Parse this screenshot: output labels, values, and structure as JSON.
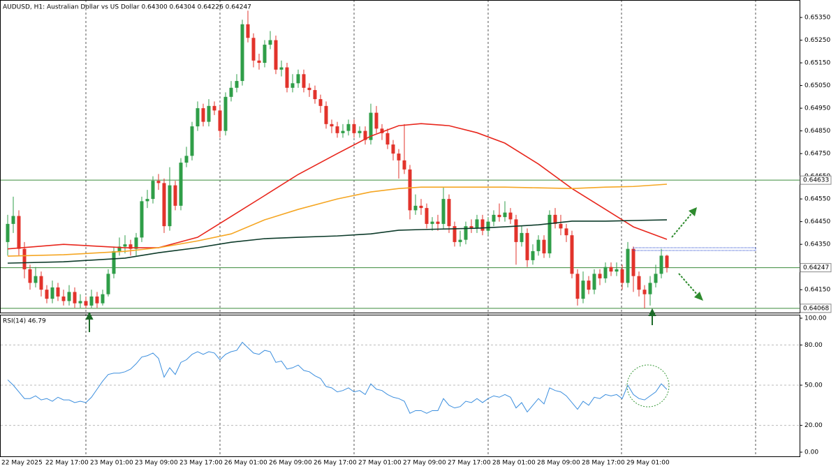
{
  "chart_data": {
    "type": "candlestick",
    "title": "AUDUSD, H1:  Australian Dollar vs US Dollar  0.64300 0.64304 0.64226 0.64247",
    "x_labels": [
      "22 May 2025",
      "22 May 17:00",
      "23 May 01:00",
      "23 May 09:00",
      "23 May 17:00",
      "26 May 01:00",
      "26 May 09:00",
      "26 May 17:00",
      "27 May 01:00",
      "27 May 09:00",
      "27 May 17:00",
      "28 May 01:00",
      "28 May 09:00",
      "28 May 17:00",
      "29 May 01:00"
    ],
    "up_color": "#2f9e48",
    "down_color": "#e2332b",
    "open": [
      0.6436,
      0.6444,
      0.64475,
      0.6433,
      0.6424,
      0.6418,
      0.6421,
      0.6415,
      0.6411,
      0.6416,
      0.6412,
      0.641,
      0.6414,
      0.6409,
      0.641,
      0.6408,
      0.6412,
      0.6409,
      0.6413,
      0.6422,
      0.6432,
      0.6434,
      0.6435,
      0.6433,
      0.6438,
      0.6454,
      0.6455,
      0.6463,
      0.6462,
      0.6443,
      0.6461,
      0.6452,
      0.6471,
      0.6474,
      0.6487,
      0.6495,
      0.6489,
      0.6496,
      0.6494,
      0.6485,
      0.65,
      0.6504,
      0.6507,
      0.6532,
      0.6526,
      0.6516,
      0.6515,
      0.6523,
      0.6525,
      0.6512,
      0.6513,
      0.6504,
      0.6506,
      0.651,
      0.6504,
      0.6503,
      0.6499,
      0.6496,
      0.6488,
      0.6487,
      0.6484,
      0.6485,
      0.6488,
      0.6484,
      0.6485,
      0.6481,
      0.6493,
      0.6486,
      0.6484,
      0.6479,
      0.6475,
      0.6472,
      0.6468,
      0.645,
      0.6452,
      0.6451,
      0.6444,
      0.6445,
      0.6444,
      0.6455,
      0.6443,
      0.6436,
      0.6437,
      0.6443,
      0.6442,
      0.6446,
      0.6441,
      0.6445,
      0.6448,
      0.6447,
      0.6449,
      0.6446,
      0.6436,
      0.644,
      0.6428,
      0.6432,
      0.6437,
      0.6431,
      0.6448,
      0.6444,
      0.6442,
      0.6439,
      0.6422,
      0.6411,
      0.6419,
      0.6415,
      0.6422,
      0.642,
      0.6425,
      0.6423,
      0.6424,
      0.6418,
      0.6433,
      0.6421,
      0.6415,
      0.6413,
      0.6418,
      0.6422,
      0.643
    ],
    "high": [
      0.6448,
      0.6456,
      0.645,
      0.6436,
      0.6426,
      0.6425,
      0.6423,
      0.6417,
      0.6419,
      0.6418,
      0.6415,
      0.6417,
      0.6416,
      0.6413,
      0.6412,
      0.6415,
      0.6414,
      0.6415,
      0.6424,
      0.6434,
      0.6438,
      0.6439,
      0.6437,
      0.644,
      0.6456,
      0.6459,
      0.6465,
      0.6466,
      0.6464,
      0.6469,
      0.6463,
      0.6473,
      0.6478,
      0.6489,
      0.6498,
      0.6497,
      0.6499,
      0.6498,
      0.6496,
      0.6502,
      0.6507,
      0.651,
      0.6534,
      0.6538,
      0.6528,
      0.6519,
      0.6525,
      0.6529,
      0.6527,
      0.6516,
      0.6515,
      0.651,
      0.6512,
      0.6512,
      0.6506,
      0.6505,
      0.6501,
      0.6498,
      0.649,
      0.6489,
      0.6488,
      0.649,
      0.649,
      0.6487,
      0.6487,
      0.6497,
      0.6496,
      0.6488,
      0.6486,
      0.6481,
      0.6477,
      0.6488,
      0.647,
      0.6457,
      0.6455,
      0.6453,
      0.6447,
      0.6448,
      0.646,
      0.6457,
      0.6445,
      0.6441,
      0.6445,
      0.6446,
      0.6448,
      0.6448,
      0.6447,
      0.645,
      0.6453,
      0.6454,
      0.6451,
      0.6448,
      0.6443,
      0.6442,
      0.6435,
      0.6439,
      0.6439,
      0.645,
      0.6451,
      0.6448,
      0.6444,
      0.6441,
      0.6424,
      0.6423,
      0.6421,
      0.6424,
      0.6424,
      0.6427,
      0.6427,
      0.6427,
      0.6426,
      0.6436,
      0.6434,
      0.6423,
      0.6417,
      0.6421,
      0.6426,
      0.6433,
      0.64304
    ],
    "low": [
      0.643,
      0.644,
      0.643,
      0.642,
      0.6415,
      0.6416,
      0.6412,
      0.6409,
      0.6409,
      0.641,
      0.6408,
      0.6408,
      0.6407,
      0.6407,
      0.64068,
      0.6407,
      0.6407,
      0.6408,
      0.6412,
      0.642,
      0.643,
      0.6431,
      0.643,
      0.643,
      0.6436,
      0.6451,
      0.6453,
      0.6459,
      0.644,
      0.6441,
      0.645,
      0.645,
      0.6469,
      0.6472,
      0.6485,
      0.6487,
      0.6487,
      0.6492,
      0.6482,
      0.6483,
      0.6498,
      0.6502,
      0.6505,
      0.6524,
      0.6513,
      0.6512,
      0.6513,
      0.6521,
      0.651,
      0.6509,
      0.6502,
      0.6502,
      0.6504,
      0.6502,
      0.65,
      0.6497,
      0.6493,
      0.6486,
      0.6484,
      0.6482,
      0.6482,
      0.6483,
      0.6482,
      0.6482,
      0.6479,
      0.6479,
      0.6484,
      0.6481,
      0.6477,
      0.6472,
      0.6464,
      0.6466,
      0.6446,
      0.6448,
      0.6448,
      0.6442,
      0.6441,
      0.6441,
      0.6442,
      0.644,
      0.6434,
      0.6434,
      0.6435,
      0.644,
      0.644,
      0.6439,
      0.6439,
      0.6443,
      0.6445,
      0.6445,
      0.6444,
      0.6426,
      0.6434,
      0.6425,
      0.6426,
      0.643,
      0.6429,
      0.6429,
      0.6442,
      0.6439,
      0.6436,
      0.642,
      0.6408,
      0.6409,
      0.6413,
      0.6413,
      0.6417,
      0.6418,
      0.6421,
      0.6421,
      0.6415,
      0.6416,
      0.6414,
      0.6412,
      0.64068,
      0.6408,
      0.6416,
      0.642,
      0.64226
    ],
    "close": [
      0.6444,
      0.64475,
      0.6433,
      0.6424,
      0.6418,
      0.6421,
      0.6415,
      0.6411,
      0.6416,
      0.6412,
      0.641,
      0.6414,
      0.6409,
      0.641,
      0.6408,
      0.6412,
      0.6409,
      0.6413,
      0.6422,
      0.6432,
      0.6434,
      0.6435,
      0.6433,
      0.6438,
      0.6454,
      0.6455,
      0.6463,
      0.6462,
      0.6443,
      0.6461,
      0.6452,
      0.6471,
      0.6474,
      0.6487,
      0.6495,
      0.6489,
      0.6496,
      0.6494,
      0.6485,
      0.65,
      0.6504,
      0.6507,
      0.6532,
      0.6526,
      0.6516,
      0.6515,
      0.6523,
      0.6525,
      0.6512,
      0.6513,
      0.6504,
      0.6506,
      0.651,
      0.6504,
      0.6503,
      0.6499,
      0.6496,
      0.6488,
      0.6487,
      0.6484,
      0.6485,
      0.6488,
      0.6484,
      0.6485,
      0.6481,
      0.6493,
      0.6486,
      0.6484,
      0.6479,
      0.6475,
      0.6472,
      0.6468,
      0.645,
      0.6452,
      0.6451,
      0.6444,
      0.6445,
      0.6444,
      0.6455,
      0.6443,
      0.6436,
      0.6437,
      0.6443,
      0.6442,
      0.6446,
      0.6441,
      0.6445,
      0.6448,
      0.6447,
      0.6449,
      0.6446,
      0.6436,
      0.644,
      0.6428,
      0.6432,
      0.6437,
      0.6431,
      0.6448,
      0.6444,
      0.6442,
      0.6439,
      0.6422,
      0.6411,
      0.6419,
      0.6415,
      0.6422,
      0.642,
      0.6425,
      0.6423,
      0.6424,
      0.6418,
      0.6433,
      0.6421,
      0.6415,
      0.6413,
      0.6418,
      0.6422,
      0.643,
      0.64247
    ],
    "ylim": [
      0.64049,
      0.65427
    ],
    "yticks": [
      {
        "value": 0.6415,
        "label": "0.64150"
      },
      {
        "value": 0.6425,
        "label": "0.64250"
      },
      {
        "value": 0.6435,
        "label": "0.64350"
      },
      {
        "value": 0.6445,
        "label": "0.64450"
      },
      {
        "value": 0.6455,
        "label": "0.64550"
      },
      {
        "value": 0.6465,
        "label": "0.64650"
      },
      {
        "value": 0.6475,
        "label": "0.64750"
      },
      {
        "value": 0.6485,
        "label": "0.64850"
      },
      {
        "value": 0.6495,
        "label": "0.64950"
      },
      {
        "value": 0.6505,
        "label": "0.65050"
      },
      {
        "value": 0.6515,
        "label": "0.65150"
      },
      {
        "value": 0.6525,
        "label": "0.65250"
      },
      {
        "value": 0.6535,
        "label": "0.65350"
      }
    ],
    "ma_x": [
      0,
      10,
      21,
      27,
      34,
      40,
      46,
      52,
      59,
      65,
      70,
      74,
      79,
      84,
      89,
      95,
      101,
      107,
      112,
      118
    ],
    "moving_averages": [
      {
        "color": "#e8261c",
        "values": [
          0.6433,
          0.6435,
          0.64335,
          0.64335,
          0.64381,
          0.64473,
          0.64565,
          0.64658,
          0.6475,
          0.64827,
          0.64873,
          0.64882,
          0.64873,
          0.64842,
          0.64796,
          0.64704,
          0.64596,
          0.64504,
          0.64427,
          0.64372
        ]
      },
      {
        "color": "#f5a623",
        "values": [
          0.64298,
          0.64304,
          0.64319,
          0.64335,
          0.64365,
          0.64396,
          0.64458,
          0.64504,
          0.6455,
          0.64581,
          0.64596,
          0.64602,
          0.64602,
          0.64602,
          0.64602,
          0.64599,
          0.64596,
          0.64602,
          0.64605,
          0.64615
        ]
      },
      {
        "color": "#0d3b2a",
        "values": [
          0.64267,
          0.64273,
          0.64289,
          0.64313,
          0.64335,
          0.64359,
          0.64375,
          0.64381,
          0.64387,
          0.64396,
          0.64412,
          0.64415,
          0.64418,
          0.64421,
          0.64427,
          0.64436,
          0.64452,
          0.64452,
          0.64455,
          0.64458
        ]
      }
    ],
    "levels": [
      0.64633,
      0.64247,
      0.64068
    ],
    "level_color": "#3a8a3a",
    "rsi": {
      "title": "RSI(14) 46.79",
      "color": "#3b8ede",
      "ylim": [
        0,
        100
      ],
      "yticks": [
        {
          "value": 0,
          "label": "0.00"
        },
        {
          "value": 20,
          "label": "20.00"
        },
        {
          "value": 50,
          "label": "50.00"
        },
        {
          "value": 80,
          "label": "80.00"
        },
        {
          "value": 100,
          "label": "100.00"
        }
      ],
      "values": [
        54,
        50,
        45,
        40,
        40,
        42,
        39,
        40,
        38,
        41,
        39,
        39,
        37,
        38,
        37,
        41,
        47,
        53,
        58,
        59,
        59,
        60,
        62,
        66,
        71,
        72,
        74,
        70,
        56,
        63,
        58,
        67,
        69,
        73,
        75,
        73,
        75,
        74,
        69,
        73,
        75,
        76,
        82,
        78,
        74,
        73,
        76,
        75,
        67,
        68,
        62,
        63,
        65,
        61,
        60,
        57,
        55,
        49,
        48,
        45,
        46,
        48,
        45,
        46,
        43,
        51,
        47,
        46,
        43,
        41,
        40,
        38,
        29,
        31,
        31,
        29,
        31,
        31,
        40,
        35,
        33,
        34,
        38,
        37,
        40,
        37,
        40,
        42,
        41,
        43,
        41,
        33,
        37,
        30,
        35,
        40,
        36,
        48,
        46,
        45,
        42,
        37,
        32,
        38,
        35,
        41,
        40,
        43,
        42,
        43,
        40,
        50,
        43,
        40,
        39,
        42,
        45,
        51,
        46.79
      ]
    }
  }
}
